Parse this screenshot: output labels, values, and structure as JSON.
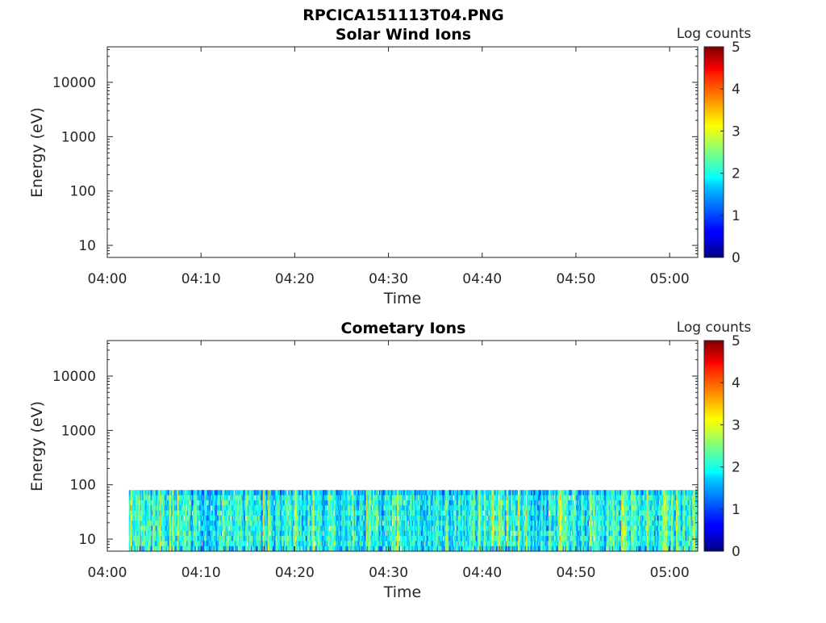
{
  "figure_title": "RPCICA151113T04.PNG",
  "chart_data": [
    {
      "type": "heatmap",
      "title": "Solar Wind Ions",
      "xlabel": "Time",
      "ylabel": "Energy (eV)",
      "x_ticks": [
        "04:00",
        "04:10",
        "04:20",
        "04:30",
        "04:40",
        "04:50",
        "05:00"
      ],
      "x_tick_minutes": [
        0,
        10,
        20,
        30,
        40,
        50,
        60
      ],
      "xlim_minutes": [
        0,
        63
      ],
      "y_scale": "log",
      "y_ticks": [
        "10",
        "100",
        "1000",
        "10000"
      ],
      "ylim": [
        6,
        45000
      ],
      "colorbar_label": "Log counts",
      "colorbar_ticks": [
        "0",
        "1",
        "2",
        "3",
        "4",
        "5"
      ],
      "clim": [
        0,
        5
      ],
      "colormap": "jet",
      "data_present": false
    },
    {
      "type": "heatmap",
      "title": "Cometary Ions",
      "xlabel": "Time",
      "ylabel": "Energy (eV)",
      "x_ticks": [
        "04:00",
        "04:10",
        "04:20",
        "04:30",
        "04:40",
        "04:50",
        "05:00"
      ],
      "x_tick_minutes": [
        0,
        10,
        20,
        30,
        40,
        50,
        60
      ],
      "xlim_minutes": [
        0,
        63
      ],
      "y_scale": "log",
      "y_ticks": [
        "10",
        "100",
        "1000",
        "10000"
      ],
      "ylim": [
        6,
        45000
      ],
      "colorbar_label": "Log counts",
      "colorbar_ticks": [
        "0",
        "1",
        "2",
        "3",
        "4",
        "5"
      ],
      "clim": [
        0,
        5
      ],
      "colormap": "jet",
      "data_present": true,
      "data_time_range_minutes": [
        2.3,
        63
      ],
      "data_energy_range_eV": [
        6,
        80
      ],
      "typical_log_counts": [
        1.0,
        2.8
      ]
    }
  ]
}
